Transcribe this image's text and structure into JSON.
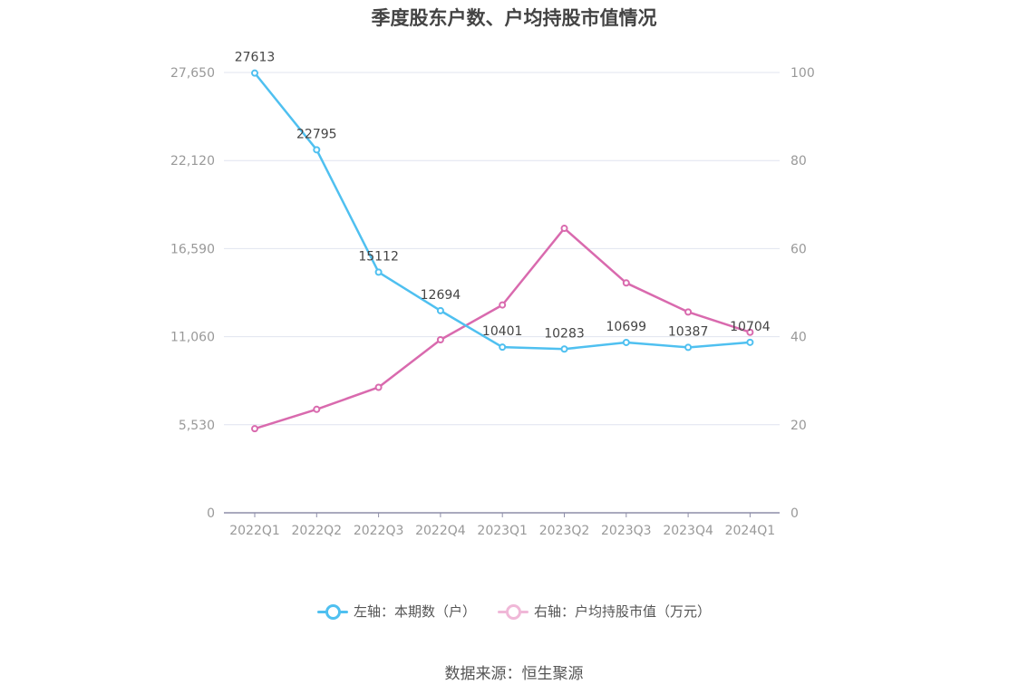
{
  "chart_data": {
    "type": "line",
    "title": "季度股东户数、户均持股市值情况",
    "categories": [
      "2022Q1",
      "2022Q2",
      "2022Q3",
      "2022Q4",
      "2023Q1",
      "2023Q2",
      "2023Q3",
      "2023Q4",
      "2024Q1"
    ],
    "left_axis": {
      "ticks": [
        "0",
        "5,530",
        "11,060",
        "16,590",
        "22,120",
        "27,650"
      ],
      "ylim": [
        0,
        27650
      ]
    },
    "right_axis": {
      "ticks": [
        "0",
        "20",
        "40",
        "60",
        "80",
        "100"
      ],
      "ylim": [
        0,
        100
      ]
    },
    "grid": true,
    "legend_position": "bottom",
    "series": [
      {
        "name": "左轴：本期数（户）",
        "axis": "left",
        "color": "#4fc0f0",
        "values": [
          27613,
          22795,
          15112,
          12694,
          10401,
          10283,
          10699,
          10387,
          10704
        ],
        "labels": [
          "27613",
          "22795",
          "15112",
          "12694",
          "10401",
          "10283",
          "10699",
          "10387",
          "10704"
        ]
      },
      {
        "name": "右轴：户均持股市值（万元）",
        "axis": "right",
        "color": "#d96aae",
        "values": [
          19.1,
          23.5,
          28.5,
          39.3,
          47.2,
          64.6,
          52.2,
          45.6,
          41.0
        ]
      }
    ]
  },
  "source_text": "数据来源：恒生聚源"
}
